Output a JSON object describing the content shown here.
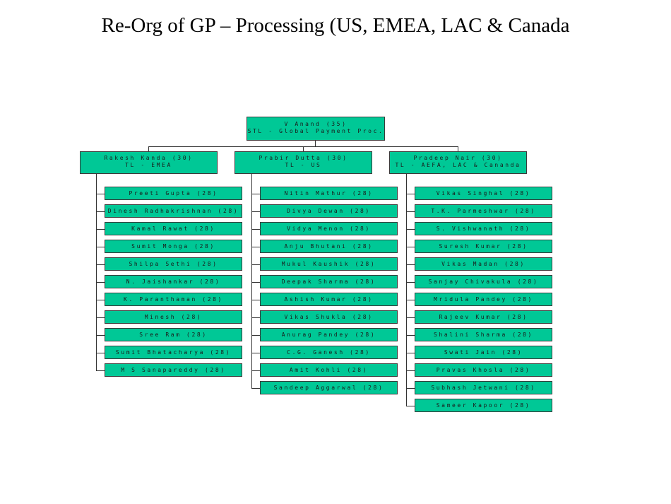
{
  "title": "Re-Org of GP – Processing (US, EMEA, LAC & Canada",
  "root": {
    "line1": "V Anand (35)",
    "line2": "STL - Global Payment Proc."
  },
  "teams": [
    {
      "lead": {
        "line1": "Rakesh Kanda (30)",
        "line2": "TL - EMEA"
      },
      "members": [
        "Preeti Gupta (28)",
        "Dinesh Radhakrishnan (28)",
        "Kamal Rawat (28)",
        "Sumit Monga (28)",
        "Shilpa Sethi (28)",
        "N. Jaishankar (28)",
        "K. Paranthaman (28)",
        "Minesh (28)",
        "Sree Ram (28)",
        "Sumit Bhatacharya (28)",
        "M S Sanapareddy (28)"
      ]
    },
    {
      "lead": {
        "line1": "Prabir Dutta (30)",
        "line2": "TL - US"
      },
      "members": [
        "Nitin Mathur (28)",
        "Divya Dewan (28)",
        "Vidya Menon (28)",
        "Anju Bhutani (28)",
        "Mukul Kaushik (28)",
        "Deepak Sharma (28)",
        "Ashish Kumar (28)",
        "Vikas Shukla (28)",
        "Anurag Pandey (28)",
        "C.G. Ganesh (28)",
        "Amit Kohli (28)",
        "Sandeep Aggarwal (28)"
      ]
    },
    {
      "lead": {
        "line1": "Pradeep Nair (30)",
        "line2": "TL - AEFA, LAC & Cananda"
      },
      "members": [
        "Vikas Singhal (28)",
        "T.K. Parmeshwar (28)",
        "S. Vishwanath (28)",
        "Suresh Kumar (28)",
        "Vikas Madan (28)",
        "Sanjay Chivakula (28)",
        "Mridula Pandey (28)",
        "Rajeev Kumar (28)",
        "Shalini Sharma (28)",
        "Swati Jain (28)",
        "Pravas Khosla (28)",
        "Subhash Jetwani (28)",
        "Sameer Kapoor (28)"
      ]
    }
  ]
}
